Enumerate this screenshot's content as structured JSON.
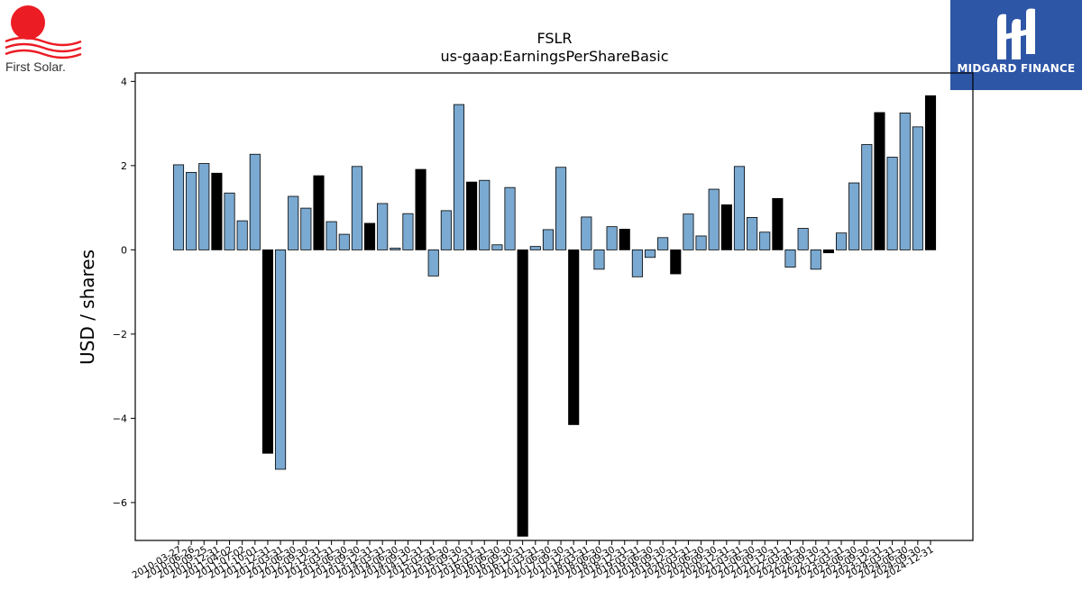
{
  "logos": {
    "left_text": "First Solar.",
    "right_text": "MIDGARD FINANCE",
    "brand_red": "#ec1c24",
    "brand_blue": "#2e56a6"
  },
  "colors": {
    "bar_default": "#7aa9d1",
    "bar_highlight": "#000000",
    "bar_edge": "#000000"
  },
  "chart_data": {
    "type": "bar",
    "title": "FSLR",
    "subtitle": "us-gaap:EarningsPerShareBasic",
    "xlabel": "",
    "ylabel": "USD / shares",
    "ylim": [
      -6.9,
      4.2
    ],
    "yticks": [
      4,
      2,
      0,
      -2,
      -4,
      -6
    ],
    "ytick_labels": [
      "4",
      "2",
      "0",
      "−2",
      "−4",
      "−6"
    ],
    "grid": false,
    "legend": "none",
    "categories": [
      "2010-03-27",
      "2010-06-26",
      "2010-09-25",
      "2010-12-31",
      "2011-04-02",
      "2011-07-02",
      "2011-10-01",
      "2011-12-31",
      "2012-03-31",
      "2012-06-30",
      "2012-09-30",
      "2012-12-31",
      "2013-03-31",
      "2013-06-30",
      "2013-09-30",
      "2013-12-31",
      "2014-03-31",
      "2014-06-30",
      "2014-09-30",
      "2014-12-31",
      "2015-03-31",
      "2015-06-30",
      "2015-09-30",
      "2015-12-31",
      "2016-03-31",
      "2016-06-30",
      "2016-09-30",
      "2016-12-31",
      "2017-03-31",
      "2017-06-30",
      "2017-09-30",
      "2017-12-31",
      "2018-03-31",
      "2018-06-30",
      "2018-09-30",
      "2018-12-31",
      "2019-03-31",
      "2019-06-30",
      "2019-09-30",
      "2019-12-31",
      "2020-03-31",
      "2020-06-30",
      "2020-09-30",
      "2020-12-31",
      "2021-03-31",
      "2021-06-30",
      "2021-09-30",
      "2021-12-31",
      "2022-03-31",
      "2022-06-30",
      "2022-09-30",
      "2022-12-31",
      "2023-03-31",
      "2023-06-30",
      "2023-09-30",
      "2023-12-31",
      "2024-03-31",
      "2024-06-30",
      "2024-09-30",
      "2024-12-31"
    ],
    "values": [
      2.02,
      1.84,
      2.05,
      1.82,
      1.35,
      0.69,
      2.27,
      -4.83,
      -5.21,
      1.27,
      0.99,
      1.76,
      0.67,
      0.37,
      1.98,
      0.63,
      1.1,
      0.04,
      0.86,
      1.91,
      -0.62,
      0.93,
      3.45,
      1.61,
      1.65,
      0.12,
      1.48,
      -6.8,
      0.08,
      0.48,
      1.96,
      -4.15,
      0.78,
      -0.46,
      0.55,
      0.49,
      -0.64,
      -0.18,
      0.29,
      -0.57,
      0.85,
      0.33,
      1.44,
      1.07,
      1.98,
      0.77,
      0.42,
      1.22,
      -0.41,
      0.51,
      -0.46,
      -0.07,
      0.4,
      1.59,
      2.5,
      3.26,
      2.2,
      3.25,
      2.92,
      3.66
    ],
    "highlight": [
      false,
      false,
      false,
      true,
      false,
      false,
      false,
      true,
      false,
      false,
      false,
      true,
      false,
      false,
      false,
      true,
      false,
      false,
      false,
      true,
      false,
      false,
      false,
      true,
      false,
      false,
      false,
      true,
      false,
      false,
      false,
      true,
      false,
      false,
      false,
      true,
      false,
      false,
      false,
      true,
      false,
      false,
      false,
      true,
      false,
      false,
      false,
      true,
      false,
      false,
      false,
      true,
      false,
      false,
      false,
      true,
      false,
      false,
      false,
      true
    ]
  }
}
